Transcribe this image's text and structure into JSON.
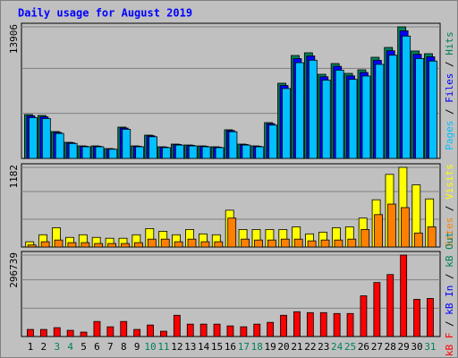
{
  "title": "Daily usage for August 2019",
  "legend_separator": " / ",
  "chart_data": [
    {
      "type": "bar",
      "ylim": [
        0,
        13906
      ],
      "yticks": [
        13906
      ],
      "series": [
        {
          "name": "Hits",
          "color": "#00805c",
          "values": [
            4635,
            4540,
            2838,
            1703,
            1324,
            1324,
            1040,
            3311,
            1324,
            2460,
            1230,
            1514,
            1419,
            1324,
            1230,
            3027,
            1514,
            1324,
            3784,
            7946,
            10879,
            11163,
            8892,
            10028,
            8987,
            9365,
            10690,
            11730,
            13906,
            11352,
            11068
          ]
        },
        {
          "name": "Files",
          "color": "#0000ff",
          "values": [
            4500,
            4400,
            2750,
            1650,
            1280,
            1280,
            1010,
            3210,
            1280,
            2390,
            1190,
            1470,
            1380,
            1280,
            1190,
            2940,
            1470,
            1280,
            3670,
            7710,
            10550,
            10830,
            8630,
            9730,
            8720,
            9080,
            10370,
            11380,
            13490,
            11010,
            10740
          ]
        },
        {
          "name": "Pages",
          "color": "#00c0ff",
          "values": [
            4310,
            4220,
            2640,
            1580,
            1230,
            1230,
            970,
            3080,
            1230,
            2290,
            1140,
            1410,
            1320,
            1230,
            1140,
            2820,
            1410,
            1230,
            3520,
            7390,
            10120,
            10380,
            8270,
            9330,
            8360,
            8710,
            9940,
            10910,
            12930,
            10560,
            10290
          ]
        }
      ]
    },
    {
      "type": "bar",
      "ylim": [
        0,
        1182
      ],
      "yticks": [
        1182
      ],
      "series": [
        {
          "name": "Visits",
          "color": "#ffff00",
          "values": [
            78,
            182,
            286,
            143,
            182,
            143,
            130,
            130,
            182,
            273,
            234,
            182,
            260,
            195,
            182,
            546,
            260,
            260,
            260,
            260,
            299,
            195,
            221,
            286,
            299,
            429,
            701,
            1078,
            1182,
            922,
            714
          ]
        },
        {
          "name": "Sites",
          "color": "#ff8000",
          "values": [
            30,
            78,
            104,
            65,
            65,
            52,
            52,
            52,
            65,
            117,
            117,
            78,
            117,
            78,
            78,
            429,
            117,
            104,
            104,
            117,
            117,
            91,
            104,
            104,
            117,
            260,
            481,
            637,
            585,
            208,
            299
          ]
        }
      ]
    },
    {
      "type": "bar",
      "ylim": [
        0,
        296739
      ],
      "yticks": [
        296739
      ],
      "categories": [
        "1",
        "2",
        "3",
        "4",
        "5",
        "6",
        "7",
        "8",
        "9",
        "10",
        "11",
        "12",
        "13",
        "14",
        "15",
        "16",
        "17",
        "18",
        "19",
        "20",
        "21",
        "22",
        "23",
        "24",
        "25",
        "26",
        "27",
        "28",
        "29",
        "30",
        "31"
      ],
      "category_colors": [
        "#000000",
        "#000000",
        "#00805c",
        "#00805c",
        "#000000",
        "#000000",
        "#000000",
        "#000000",
        "#000000",
        "#00805c",
        "#00805c",
        "#000000",
        "#000000",
        "#000000",
        "#000000",
        "#000000",
        "#00805c",
        "#00805c",
        "#000000",
        "#000000",
        "#000000",
        "#000000",
        "#000000",
        "#00805c",
        "#00805c",
        "#000000",
        "#000000",
        "#000000",
        "#000000",
        "#000000",
        "#00805c"
      ],
      "series": [
        {
          "name": "kB Out",
          "color": "#00805c",
          "values": [
            null,
            null,
            null,
            null,
            null,
            null,
            null,
            null,
            null,
            null,
            null,
            null,
            null,
            null,
            null,
            null,
            null,
            null,
            null,
            null,
            null,
            null,
            null,
            null,
            null,
            null,
            null,
            null,
            null,
            null,
            null
          ]
        },
        {
          "name": "kB In",
          "color": "#0000ff",
          "values": [
            null,
            null,
            null,
            null,
            null,
            null,
            null,
            null,
            null,
            null,
            null,
            null,
            null,
            null,
            null,
            null,
            null,
            null,
            null,
            null,
            null,
            null,
            null,
            null,
            null,
            null,
            null,
            null,
            null,
            null,
            null
          ]
        },
        {
          "name": "kB F",
          "color": "#ff0000",
          "values": [
            25800,
            25800,
            32250,
            22575,
            16125,
            54825,
            35475,
            54825,
            25800,
            41925,
            19350,
            77400,
            45150,
            45150,
            45150,
            38700,
            35475,
            45150,
            51600,
            77400,
            90300,
            87075,
            87075,
            83850,
            83850,
            148350,
            196725,
            225750,
            296739,
            135450,
            138675
          ]
        }
      ]
    }
  ]
}
